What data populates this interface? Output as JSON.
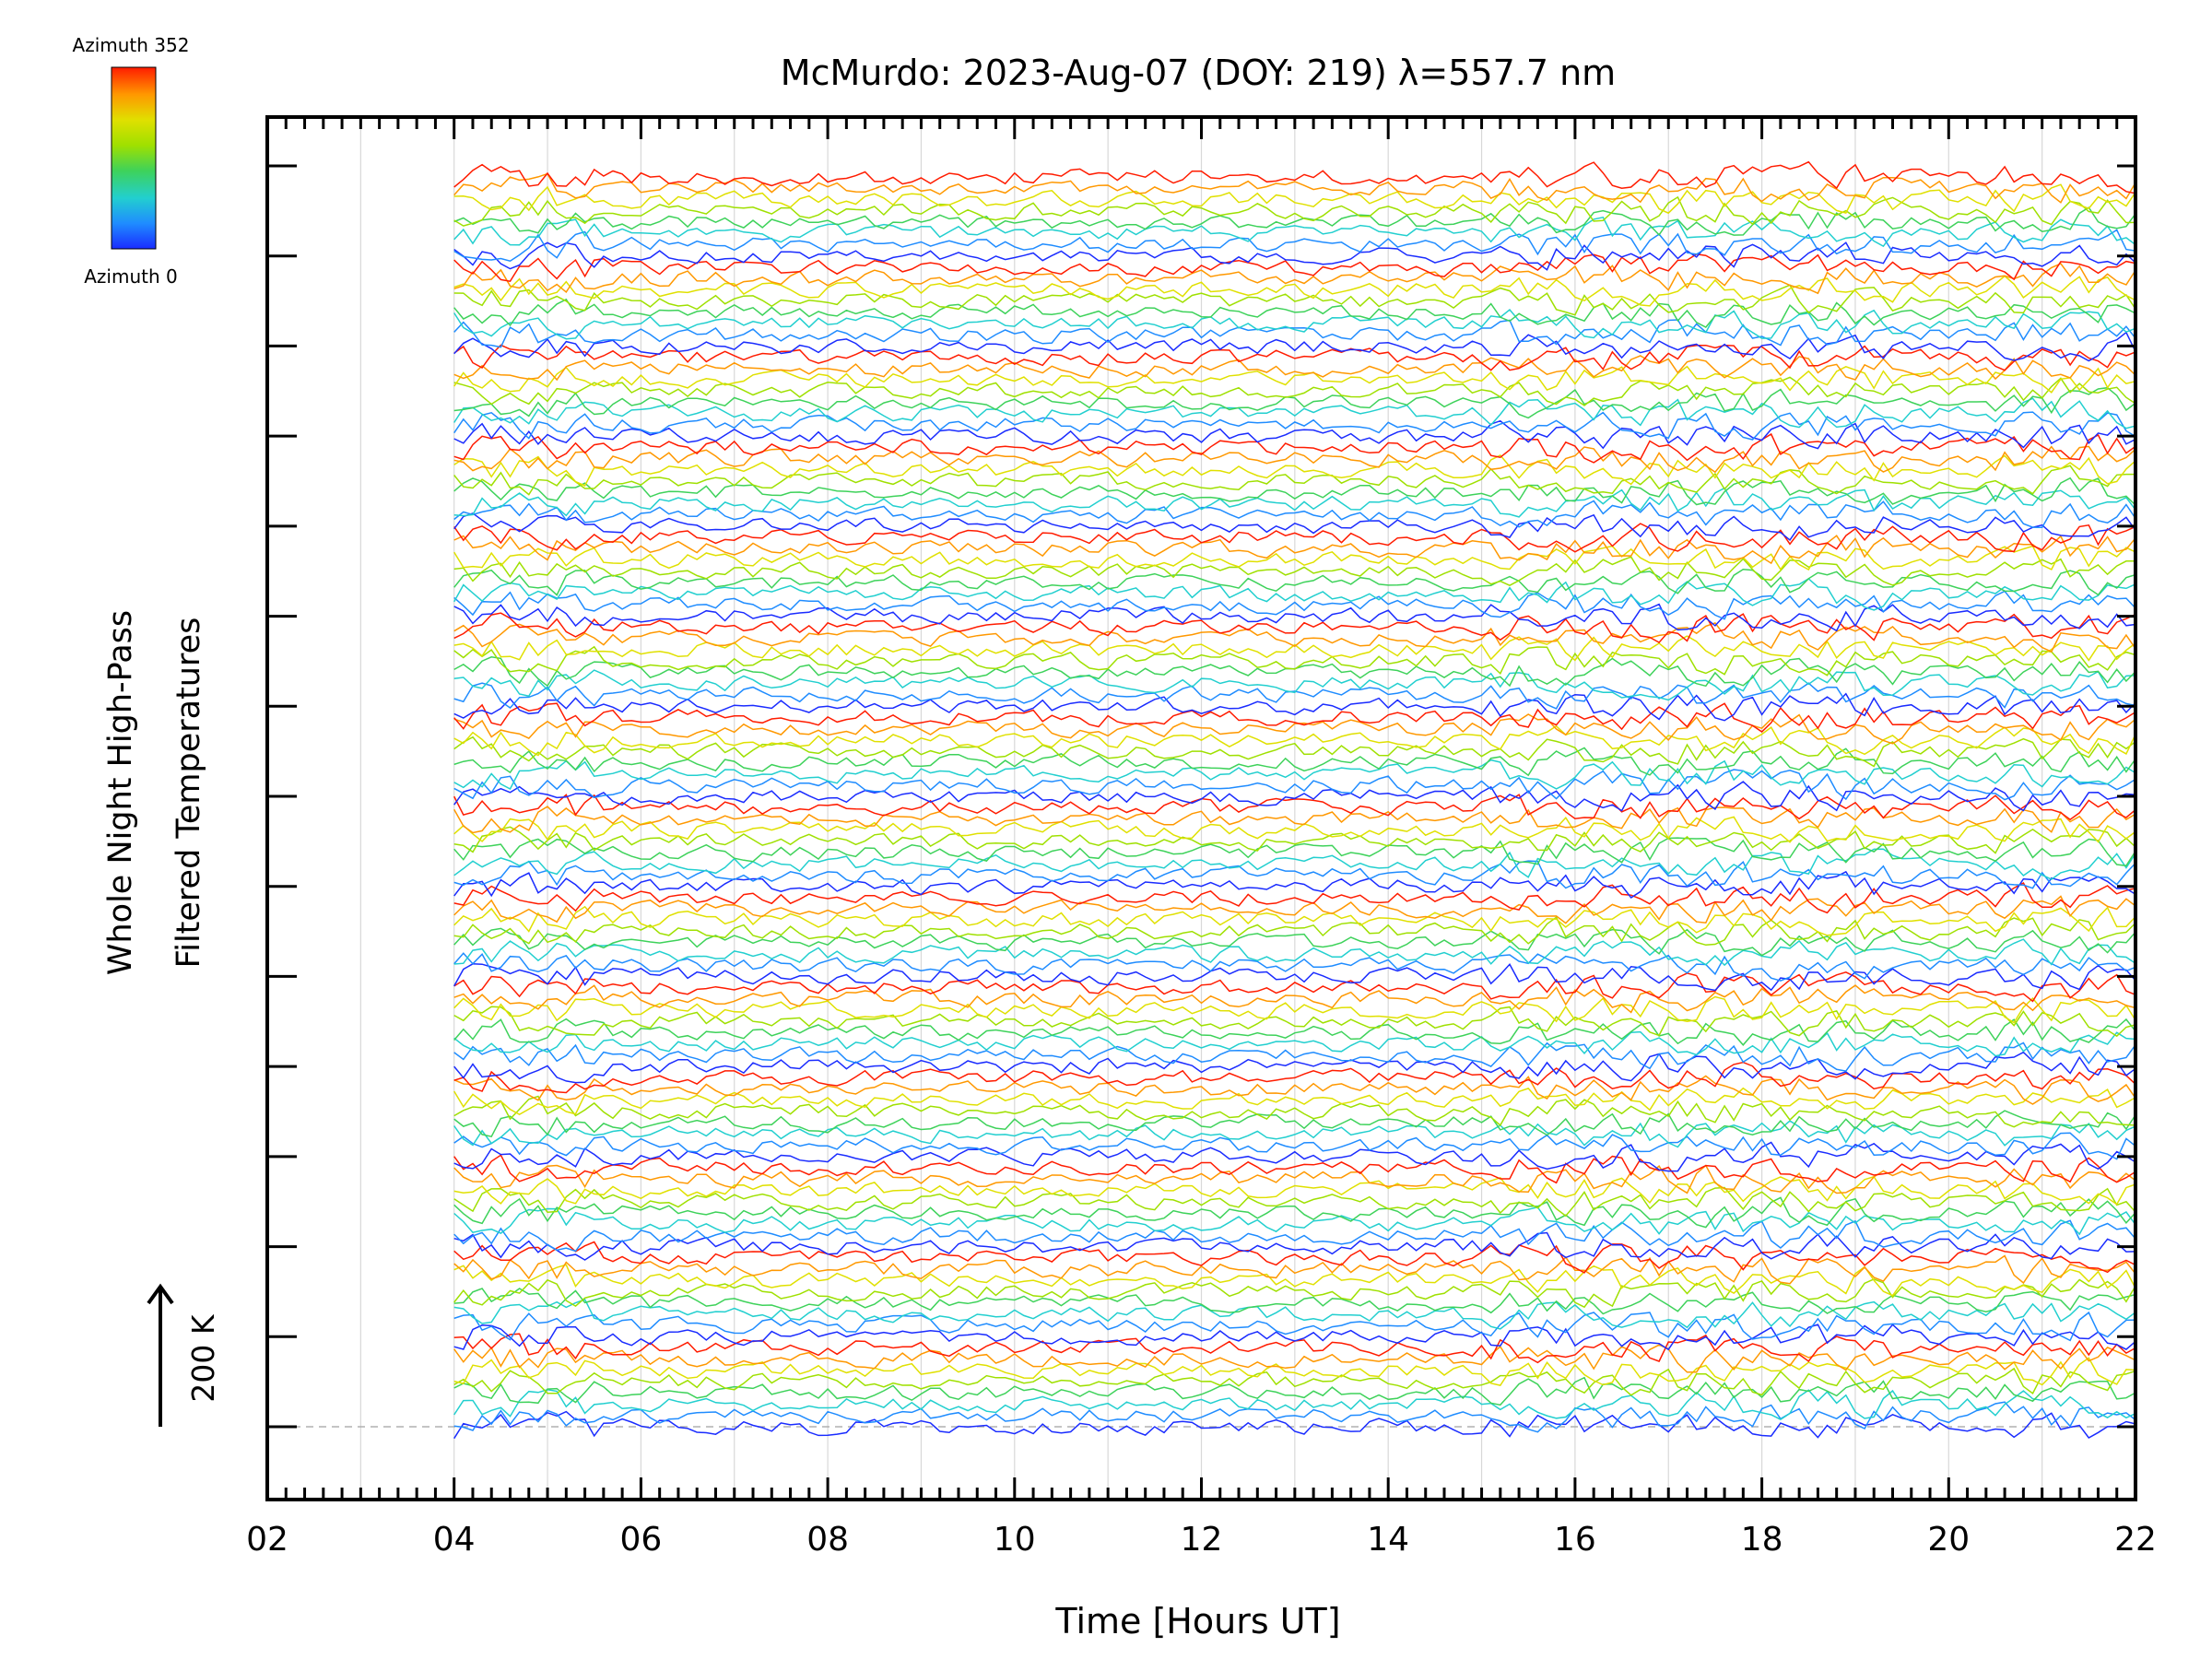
{
  "chart_data": {
    "type": "line",
    "title": "McMurdo: 2023-Aug-07 (DOY: 219) λ=557.7 nm",
    "xlabel": "Time [Hours UT]",
    "ylabel_line1": "Whole Night High-Pass",
    "ylabel_line2": "Filtered Temperatures",
    "scale_label": "200 K",
    "x_range": [
      2,
      22
    ],
    "x_ticks": [
      "02",
      "04",
      "06",
      "08",
      "10",
      "12",
      "14",
      "16",
      "18",
      "20",
      "22"
    ],
    "data_start_hour": 4.0,
    "data_end_hour": 22.0,
    "sample_interval_hours": 0.1,
    "groups": 14,
    "traces_per_group": 8,
    "azimuth_min": 0,
    "azimuth_max": 352,
    "noise_amplitude_K": 20,
    "colorbar": {
      "top_label": "Azimuth 352",
      "bottom_label": "Azimuth 0"
    },
    "colormap": [
      "#1a2cff",
      "#1f8cff",
      "#22cfcf",
      "#3ed25a",
      "#9fe000",
      "#e0e000",
      "#ff9800",
      "#ff1c00"
    ]
  }
}
